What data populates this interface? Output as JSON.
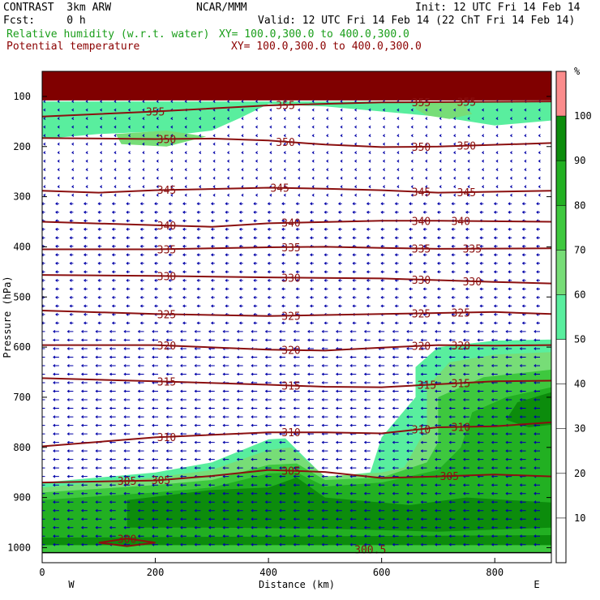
{
  "header": {
    "model": "CONTRAST  3km ARW",
    "org": "NCAR/MMM",
    "init": "Init: 12 UTC Fri 14 Feb 14",
    "fcst": "Fcst:     0 h",
    "valid": "Valid: 12 UTC Fri 14 Feb 14 (22 ChT Fri 14 Feb 14)",
    "field1_name": "Relative humidity (w.r.t. water)",
    "field1_xy": "XY= 100.0,300.0 to 400.0,300.0",
    "field2_name": "Potential temperature",
    "field2_xy": "XY= 100.0,300.0 to 400.0,300.0"
  },
  "colors": {
    "rh_50_60": "#59ee9e",
    "rh_60_70": "#77dd77",
    "rh_70_80": "#3ec83e",
    "rh_80_90": "#22b022",
    "rh_90_100": "#0c8c0c",
    "rh_over_100": "#fb8c8c",
    "top_band": "#800000",
    "theta_line": "#8b1010",
    "wind_vector": "#0000a8"
  },
  "chart_data": {
    "type": "cross-section",
    "x_axis": {
      "label": "Distance (km)",
      "range": [
        0,
        900
      ],
      "ticks": [
        0,
        200,
        400,
        600,
        800
      ],
      "left_end_label": "W",
      "right_end_label": "E"
    },
    "y_axis": {
      "label": "Pressure (hPa)",
      "range": [
        1030,
        50
      ],
      "ticks": [
        100,
        200,
        300,
        400,
        500,
        600,
        700,
        800,
        900,
        1000
      ]
    },
    "colorbar": {
      "unit": "%",
      "ticks": [
        10,
        20,
        30,
        40,
        50,
        60,
        70,
        80,
        90,
        100
      ]
    },
    "theta_isolines": [
      {
        "value": 355,
        "points": [
          [
            0,
            140
          ],
          [
            200,
            130
          ],
          [
            400,
            118
          ],
          [
            600,
            112
          ],
          [
            900,
            110
          ]
        ],
        "labels": [
          [
            200,
            "355"
          ],
          [
            430,
            "355"
          ],
          [
            670,
            "355"
          ],
          [
            750,
            "355"
          ]
        ]
      },
      {
        "value": 350,
        "points": [
          [
            0,
            183
          ],
          [
            200,
            185
          ],
          [
            300,
            184
          ],
          [
            400,
            188
          ],
          [
            500,
            196
          ],
          [
            600,
            201
          ],
          [
            700,
            200
          ],
          [
            900,
            193
          ]
        ],
        "labels": [
          [
            220,
            "350"
          ],
          [
            430,
            "350"
          ],
          [
            670,
            "350"
          ],
          [
            750,
            "350"
          ]
        ]
      },
      {
        "value": 345,
        "points": [
          [
            0,
            288
          ],
          [
            100,
            292
          ],
          [
            200,
            287
          ],
          [
            400,
            282
          ],
          [
            500,
            284
          ],
          [
            600,
            287
          ],
          [
            700,
            292
          ],
          [
            900,
            288
          ]
        ],
        "labels": [
          [
            220,
            "345"
          ],
          [
            420,
            "345"
          ],
          [
            670,
            "345"
          ],
          [
            750,
            "345"
          ]
        ]
      },
      {
        "value": 340,
        "points": [
          [
            0,
            350
          ],
          [
            200,
            357
          ],
          [
            300,
            360
          ],
          [
            400,
            353
          ],
          [
            600,
            348
          ],
          [
            700,
            348
          ],
          [
            900,
            350
          ]
        ],
        "labels": [
          [
            220,
            "340"
          ],
          [
            440,
            "340"
          ],
          [
            670,
            "340"
          ],
          [
            740,
            "340"
          ]
        ]
      },
      {
        "value": 335,
        "points": [
          [
            0,
            405
          ],
          [
            200,
            405
          ],
          [
            400,
            401
          ],
          [
            500,
            400
          ],
          [
            600,
            402
          ],
          [
            700,
            404
          ],
          [
            900,
            403
          ]
        ],
        "labels": [
          [
            220,
            "335"
          ],
          [
            440,
            "335"
          ],
          [
            670,
            "335"
          ],
          [
            760,
            "335"
          ]
        ]
      },
      {
        "value": 330,
        "points": [
          [
            0,
            456
          ],
          [
            200,
            458
          ],
          [
            400,
            461
          ],
          [
            600,
            463
          ],
          [
            800,
            470
          ],
          [
            900,
            473
          ]
        ],
        "labels": [
          [
            220,
            "330"
          ],
          [
            440,
            "330"
          ],
          [
            670,
            "330"
          ],
          [
            760,
            "330"
          ]
        ]
      },
      {
        "value": 325,
        "points": [
          [
            0,
            527
          ],
          [
            200,
            534
          ],
          [
            400,
            538
          ],
          [
            600,
            534
          ],
          [
            800,
            530
          ],
          [
            900,
            534
          ]
        ],
        "labels": [
          [
            220,
            "325"
          ],
          [
            440,
            "325"
          ],
          [
            670,
            "325"
          ],
          [
            740,
            "325"
          ]
        ]
      },
      {
        "value": 320,
        "points": [
          [
            0,
            596
          ],
          [
            200,
            596
          ],
          [
            400,
            605
          ],
          [
            500,
            607
          ],
          [
            600,
            601
          ],
          [
            700,
            596
          ],
          [
            800,
            597
          ],
          [
            900,
            596
          ]
        ],
        "labels": [
          [
            220,
            "320"
          ],
          [
            440,
            "320"
          ],
          [
            670,
            "320"
          ],
          [
            740,
            "320"
          ]
        ]
      },
      {
        "value": 315,
        "points": [
          [
            0,
            662
          ],
          [
            200,
            668
          ],
          [
            400,
            675
          ],
          [
            500,
            679
          ],
          [
            600,
            680
          ],
          [
            700,
            674
          ],
          [
            800,
            668
          ],
          [
            900,
            667
          ]
        ],
        "labels": [
          [
            220,
            "315"
          ],
          [
            440,
            "315"
          ],
          [
            680,
            "315"
          ],
          [
            740,
            "315"
          ]
        ]
      },
      {
        "value": 310,
        "points": [
          [
            0,
            798
          ],
          [
            200,
            780
          ],
          [
            400,
            770
          ],
          [
            500,
            770
          ],
          [
            600,
            772
          ],
          [
            700,
            760
          ],
          [
            800,
            758
          ],
          [
            900,
            750
          ]
        ],
        "labels": [
          [
            220,
            "310"
          ],
          [
            440,
            "310"
          ],
          [
            670,
            "310"
          ],
          [
            740,
            "310"
          ]
        ]
      },
      {
        "value": 305,
        "points": [
          [
            0,
            870
          ],
          [
            200,
            866
          ],
          [
            300,
            857
          ],
          [
            400,
            845
          ],
          [
            500,
            849
          ],
          [
            600,
            861
          ],
          [
            700,
            858
          ],
          [
            800,
            854
          ],
          [
            900,
            858
          ]
        ],
        "labels": [
          [
            150,
            "305"
          ],
          [
            210,
            "305"
          ],
          [
            440,
            "305"
          ],
          [
            720,
            "305"
          ]
        ]
      },
      {
        "value": 300,
        "points": [
          [
            100,
            990
          ],
          [
            150,
            982
          ],
          [
            200,
            990
          ],
          [
            150,
            997
          ],
          [
            100,
            990
          ]
        ],
        "labels": [
          [
            150,
            "300"
          ]
        ]
      },
      {
        "value": 300.5,
        "points": [],
        "labels": [
          [
            580,
            "300.5"
          ]
        ]
      }
    ],
    "rh_regions": [
      {
        "class": "rh_50_60",
        "points": [
          [
            0,
            110
          ],
          [
            900,
            110
          ],
          [
            900,
            148
          ],
          [
            800,
            158
          ],
          [
            700,
            140
          ],
          [
            600,
            130
          ],
          [
            500,
            120
          ],
          [
            400,
            115
          ],
          [
            350,
            143
          ],
          [
            300,
            168
          ],
          [
            250,
            175
          ],
          [
            200,
            170
          ],
          [
            100,
            175
          ],
          [
            0,
            185
          ]
        ]
      },
      {
        "class": "rh_60_70",
        "points": [
          [
            660,
            110
          ],
          [
            740,
            110
          ],
          [
            760,
            135
          ],
          [
            720,
            145
          ],
          [
            680,
            138
          ],
          [
            660,
            125
          ]
        ]
      },
      {
        "class": "rh_60_70",
        "points": [
          [
            130,
            175
          ],
          [
            220,
            168
          ],
          [
            290,
            180
          ],
          [
            220,
            200
          ],
          [
            140,
            195
          ]
        ]
      },
      {
        "class": "rh_50_60",
        "points": [
          [
            900,
            585
          ],
          [
            800,
            587
          ],
          [
            700,
            600
          ],
          [
            660,
            640
          ],
          [
            660,
            700
          ],
          [
            600,
            780
          ],
          [
            580,
            850
          ],
          [
            500,
            860
          ],
          [
            430,
            782
          ],
          [
            400,
            784
          ],
          [
            300,
            830
          ],
          [
            200,
            850
          ],
          [
            100,
            860
          ],
          [
            0,
            870
          ],
          [
            0,
            1010
          ],
          [
            900,
            1010
          ]
        ]
      },
      {
        "class": "rh_60_70",
        "points": [
          [
            900,
            610
          ],
          [
            800,
            615
          ],
          [
            720,
            630
          ],
          [
            680,
            680
          ],
          [
            680,
            760
          ],
          [
            640,
            840
          ],
          [
            600,
            850
          ],
          [
            500,
            858
          ],
          [
            440,
            800
          ],
          [
            400,
            805
          ],
          [
            300,
            845
          ],
          [
            200,
            860
          ],
          [
            0,
            880
          ],
          [
            0,
            1010
          ],
          [
            900,
            1010
          ]
        ]
      },
      {
        "class": "rh_70_80",
        "points": [
          [
            900,
            645
          ],
          [
            780,
            660
          ],
          [
            700,
            700
          ],
          [
            700,
            790
          ],
          [
            680,
            830
          ],
          [
            600,
            860
          ],
          [
            500,
            865
          ],
          [
            450,
            832
          ],
          [
            400,
            835
          ],
          [
            300,
            865
          ],
          [
            200,
            875
          ],
          [
            0,
            890
          ],
          [
            0,
            1010
          ],
          [
            900,
            1010
          ]
        ]
      },
      {
        "class": "rh_80_90",
        "points": [
          [
            900,
            680
          ],
          [
            820,
            700
          ],
          [
            760,
            730
          ],
          [
            740,
            800
          ],
          [
            700,
            845
          ],
          [
            600,
            870
          ],
          [
            500,
            878
          ],
          [
            450,
            850
          ],
          [
            400,
            852
          ],
          [
            300,
            880
          ],
          [
            200,
            890
          ],
          [
            0,
            905
          ],
          [
            0,
            1000
          ],
          [
            900,
            1000
          ]
        ]
      },
      {
        "class": "rh_90_100",
        "points": [
          [
            900,
            690
          ],
          [
            840,
            710
          ],
          [
            820,
            745
          ],
          [
            860,
            760
          ],
          [
            900,
            755
          ]
        ]
      },
      {
        "class": "rh_90_100",
        "points": [
          [
            150,
            905
          ],
          [
            300,
            885
          ],
          [
            400,
            880
          ],
          [
            450,
            860
          ],
          [
            500,
            900
          ],
          [
            650,
            915
          ],
          [
            750,
            900
          ],
          [
            900,
            910
          ],
          [
            900,
            960
          ],
          [
            700,
            968
          ],
          [
            500,
            962
          ],
          [
            300,
            960
          ],
          [
            150,
            960
          ]
        ]
      },
      {
        "class": "rh_80_90",
        "points": [
          [
            0,
            930
          ],
          [
            60,
            930
          ],
          [
            60,
            960
          ],
          [
            0,
            965
          ]
        ]
      },
      {
        "class": "rh_90_100",
        "points": [
          [
            0,
            980
          ],
          [
            900,
            975
          ],
          [
            900,
            1000
          ],
          [
            0,
            1000
          ]
        ]
      },
      {
        "class": "rh_70_80",
        "points": [
          [
            0,
            995
          ],
          [
            900,
            995
          ],
          [
            900,
            1010
          ],
          [
            0,
            1010
          ]
        ]
      }
    ]
  }
}
